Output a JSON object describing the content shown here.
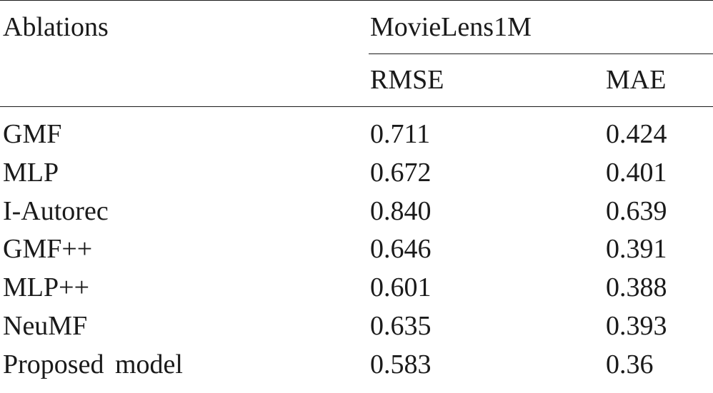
{
  "table": {
    "header": {
      "stub": "Ablations",
      "group": "MovieLens1M",
      "columns": [
        "RMSE",
        "MAE"
      ]
    },
    "rows": [
      {
        "name": "GMF",
        "rmse": "0.711",
        "mae": "0.424"
      },
      {
        "name": "MLP",
        "rmse": "0.672",
        "mae": "0.401"
      },
      {
        "name": "I-Autorec",
        "rmse": "0.840",
        "mae": "0.639"
      },
      {
        "name": "GMF++",
        "rmse": "0.646",
        "mae": "0.391"
      },
      {
        "name": "MLP++",
        "rmse": "0.601",
        "mae": "0.388"
      },
      {
        "name": "NeuMF",
        "rmse": "0.635",
        "mae": "0.393"
      },
      {
        "name": "Proposed model",
        "rmse": "0.583",
        "mae": "0.36"
      }
    ]
  }
}
